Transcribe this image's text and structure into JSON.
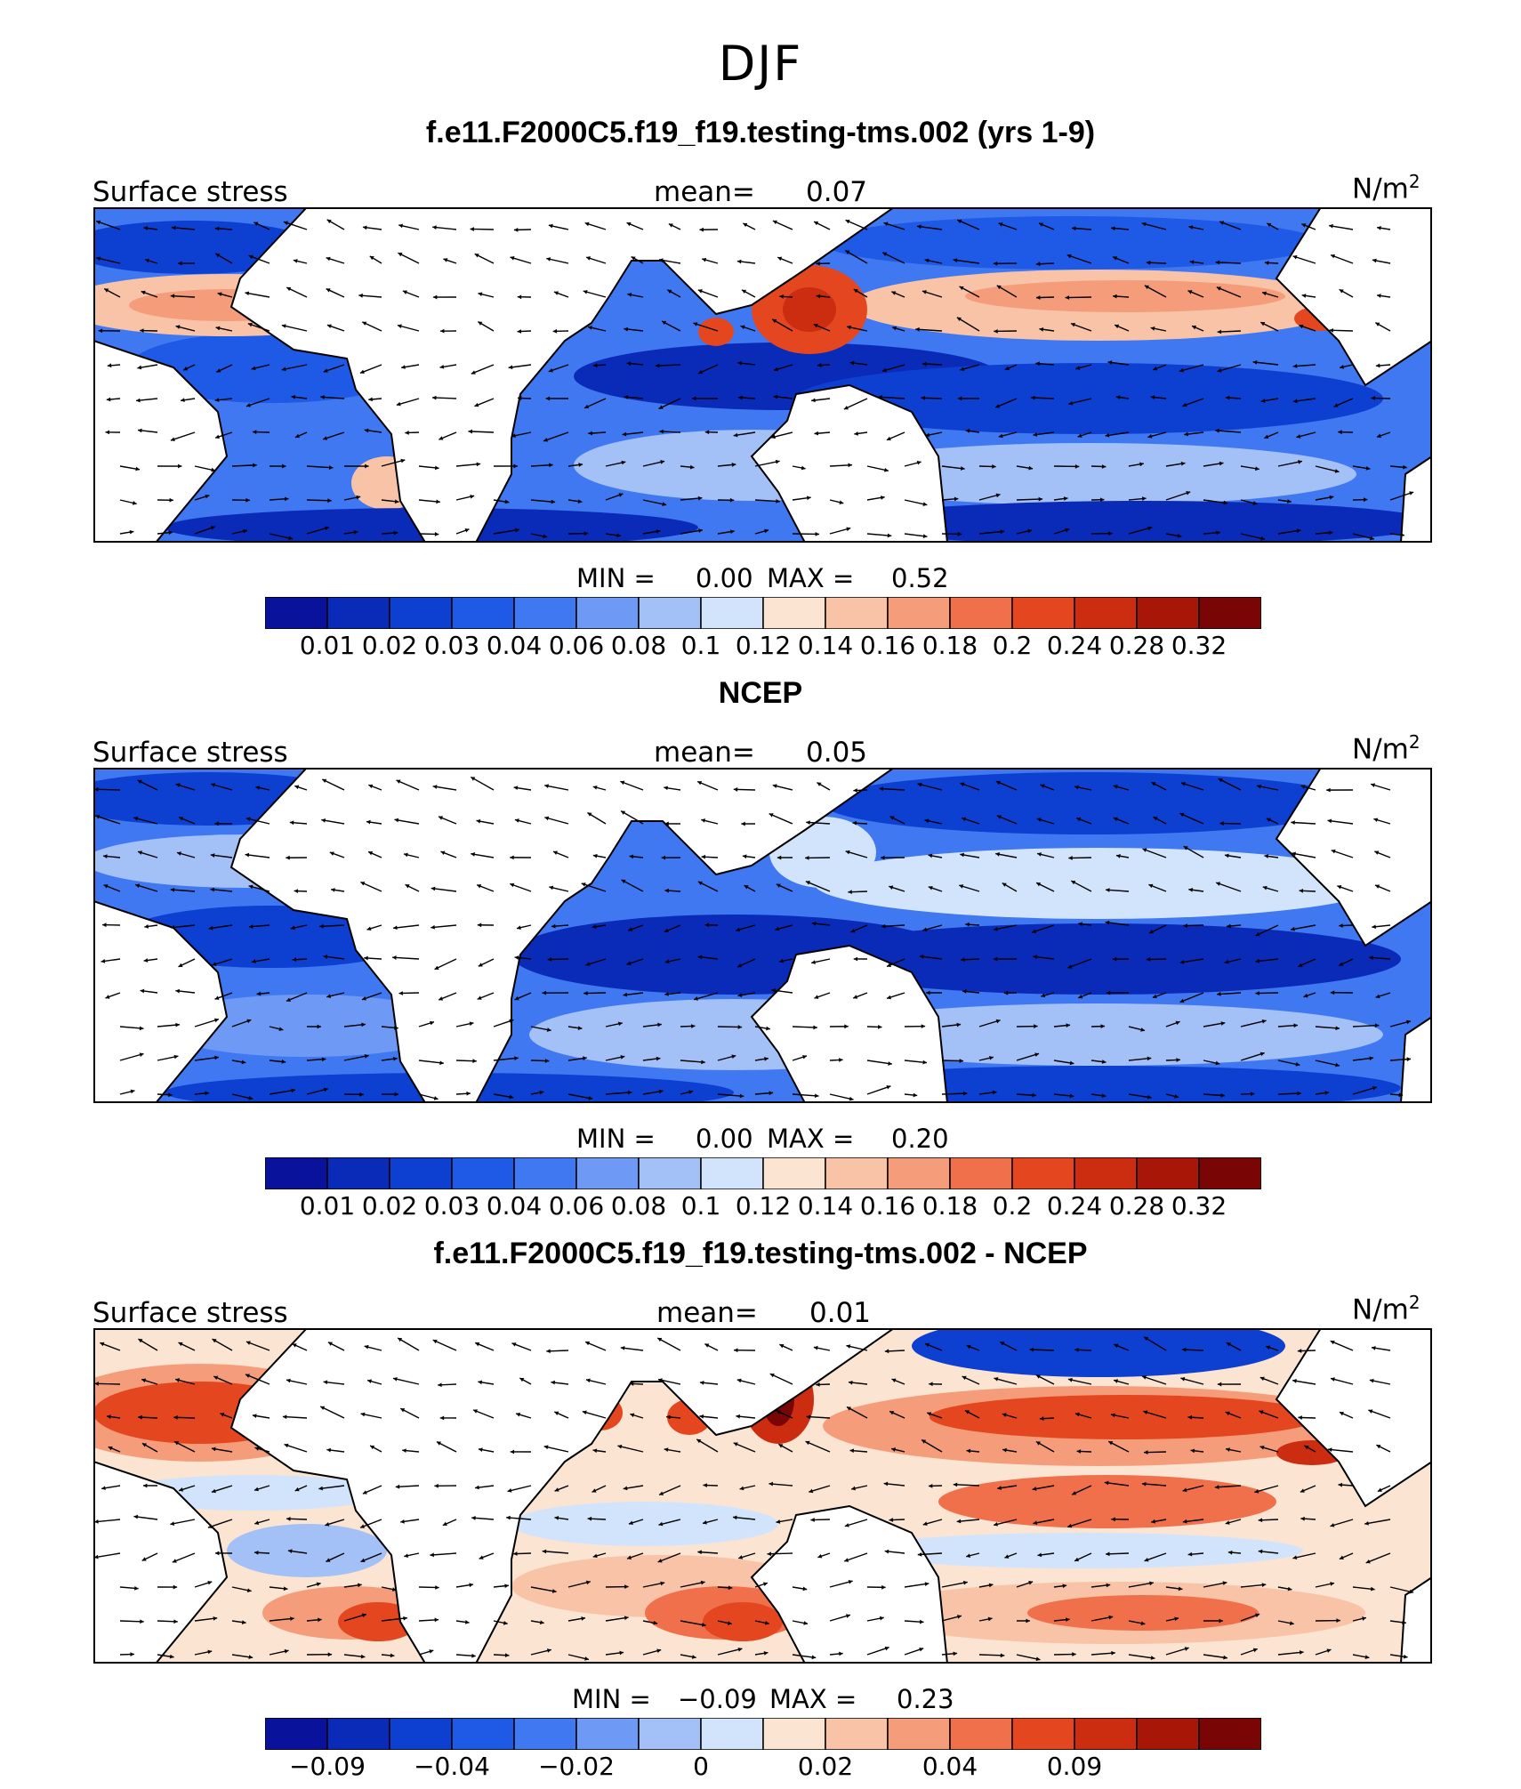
{
  "season": "DJF",
  "panels": [
    {
      "title": "f.e11.F2000C5.f19_f19.testing-tms.002 (yrs 1-9)",
      "variable": "Surface stress",
      "mean_label": "mean=",
      "mean": "0.07",
      "units": "N/m",
      "units_sup": "2",
      "min_label": "MIN =",
      "min": "0.00",
      "max_label": "MAX =",
      "max": "0.52"
    },
    {
      "title": "NCEP",
      "variable": "Surface stress",
      "mean_label": "mean=",
      "mean": "0.05",
      "units": "N/m",
      "units_sup": "2",
      "min_label": "MIN =",
      "min": "0.00",
      "max_label": "MAX =",
      "max": "0.20"
    },
    {
      "title": "f.e11.F2000C5.f19_f19.testing-tms.002 - NCEP",
      "variable": "Surface stress",
      "mean_label": "mean=",
      "mean": "0.01",
      "units": "N/m",
      "units_sup": "2",
      "min_label": "MIN =",
      "min": "−0.09",
      "max_label": "MAX =",
      "max": "0.23"
    }
  ],
  "chart_data": [
    {
      "type": "heatmap",
      "title": "f.e11.F2000C5.f19_f19.testing-tms.002 (yrs 1-9)",
      "variable": "Surface stress",
      "units": "N/m2",
      "mean": 0.07,
      "min": 0.0,
      "max": 0.52,
      "colorbar_levels": [
        "0.01",
        "0.02",
        "0.03",
        "0.04",
        "0.06",
        "0.08",
        "0.1",
        "0.12",
        "0.14",
        "0.16",
        "0.18",
        "0.2",
        "0.24",
        "0.28",
        "0.32"
      ],
      "colorbar_colors": [
        "#08129a",
        "#0a2ab8",
        "#0d3fd0",
        "#1f5ae6",
        "#3f78f0",
        "#6e9af5",
        "#a3c0f7",
        "#d2e4fb",
        "#fce4d2",
        "#f9c3a8",
        "#f59d7a",
        "#f0704b",
        "#e4471f",
        "#cc2c10",
        "#a81608",
        "#7a0505"
      ]
    },
    {
      "type": "heatmap",
      "title": "NCEP",
      "variable": "Surface stress",
      "units": "N/m2",
      "mean": 0.05,
      "min": 0.0,
      "max": 0.2,
      "colorbar_levels": [
        "0.01",
        "0.02",
        "0.03",
        "0.04",
        "0.06",
        "0.08",
        "0.1",
        "0.12",
        "0.14",
        "0.16",
        "0.18",
        "0.2",
        "0.24",
        "0.28",
        "0.32"
      ],
      "colorbar_colors": [
        "#08129a",
        "#0a2ab8",
        "#0d3fd0",
        "#1f5ae6",
        "#3f78f0",
        "#6e9af5",
        "#a3c0f7",
        "#d2e4fb",
        "#fce4d2",
        "#f9c3a8",
        "#f59d7a",
        "#f0704b",
        "#e4471f",
        "#cc2c10",
        "#a81608",
        "#7a0505"
      ]
    },
    {
      "type": "heatmap",
      "title": "f.e11.F2000C5.f19_f19.testing-tms.002 - NCEP",
      "variable": "Surface stress",
      "units": "N/m2",
      "mean": 0.01,
      "min": -0.09,
      "max": 0.23,
      "colorbar_levels": [
        "−0.09",
        "−0.04",
        "−0.02",
        "0",
        "0.02",
        "0.04",
        "0.09"
      ],
      "colorbar_colors": [
        "#08129a",
        "#0a2ab8",
        "#0d3fd0",
        "#1f5ae6",
        "#3f78f0",
        "#6e9af5",
        "#a3c0f7",
        "#d2e4fb",
        "#fce4d2",
        "#f9c3a8",
        "#f59d7a",
        "#f0704b",
        "#e4471f",
        "#cc2c10",
        "#a81608",
        "#7a0505"
      ]
    }
  ]
}
